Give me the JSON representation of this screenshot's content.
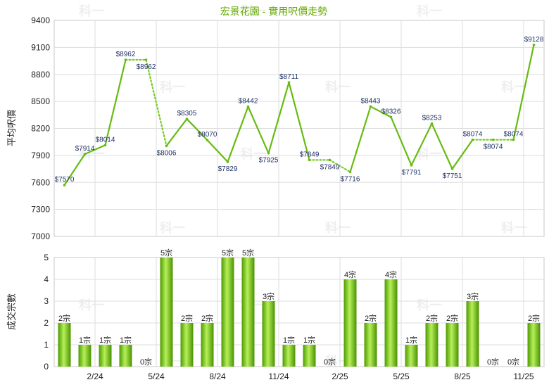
{
  "chart_data": [
    {
      "type": "line",
      "title": "宏景花園 - 實用呎價走勢",
      "ylabel": "平均呎價",
      "ylim": [
        7000,
        9400
      ],
      "yticks": [
        7000,
        7300,
        7600,
        7900,
        8200,
        8500,
        8800,
        9100,
        9400
      ],
      "grid": true,
      "color": "#66bb11",
      "gap_color": "#77cc22",
      "points": [
        {
          "label": "$7570",
          "value": 7570,
          "gap": false
        },
        {
          "label": "$7914",
          "value": 7914,
          "gap": false
        },
        {
          "label": "$8014",
          "value": 8014,
          "gap": false
        },
        {
          "label": "$8962",
          "value": 8962,
          "gap": false
        },
        {
          "label": "$8962",
          "value": 8962,
          "gap": true
        },
        {
          "label": "$8006",
          "value": 8006,
          "gap": false
        },
        {
          "label": "$8305",
          "value": 8305,
          "gap": false
        },
        {
          "label": "$8070",
          "value": 8070,
          "gap": false
        },
        {
          "label": "$7829",
          "value": 7829,
          "gap": false
        },
        {
          "label": "$8442",
          "value": 8442,
          "gap": false
        },
        {
          "label": "$7925",
          "value": 7925,
          "gap": false
        },
        {
          "label": "$8711",
          "value": 8711,
          "gap": false
        },
        {
          "label": "$7849",
          "value": 7849,
          "gap": false
        },
        {
          "label": "$7849",
          "value": 7849,
          "gap": true
        },
        {
          "label": "$7716",
          "value": 7716,
          "gap": false
        },
        {
          "label": "$8443",
          "value": 8443,
          "gap": false
        },
        {
          "label": "$8326",
          "value": 8326,
          "gap": false
        },
        {
          "label": "$7791",
          "value": 7791,
          "gap": false
        },
        {
          "label": "$8253",
          "value": 8253,
          "gap": false
        },
        {
          "label": "$7751",
          "value": 7751,
          "gap": false
        },
        {
          "label": "$8074",
          "value": 8074,
          "gap": false
        },
        {
          "label": "$8074",
          "value": 8074,
          "gap": true
        },
        {
          "label": "$8074",
          "value": 8074,
          "gap": false
        },
        {
          "label": "$9128",
          "value": 9128,
          "gap": false
        }
      ]
    },
    {
      "type": "bar",
      "ylabel": "成交宗數",
      "ylim": [
        0,
        5
      ],
      "yticks": [
        0,
        1,
        2,
        3,
        4,
        5
      ],
      "grid": true,
      "values": [
        2,
        1,
        1,
        1,
        0,
        5,
        2,
        2,
        5,
        5,
        3,
        1,
        1,
        0,
        4,
        2,
        4,
        1,
        2,
        2,
        3,
        0,
        0,
        2
      ],
      "value_labels": [
        "2宗",
        "1宗",
        "1宗",
        "1宗",
        "0宗",
        "5宗",
        "2宗",
        "2宗",
        "5宗",
        "5宗",
        "3宗",
        "1宗",
        "1宗",
        "0宗",
        "4宗",
        "2宗",
        "4宗",
        "1宗",
        "2宗",
        "2宗",
        "3宗",
        "0宗",
        "0宗",
        "2宗"
      ],
      "x_tick_labels": [
        {
          "index": 2,
          "label": "2/24"
        },
        {
          "index": 5,
          "label": "5/24"
        },
        {
          "index": 8,
          "label": "8/24"
        },
        {
          "index": 11,
          "label": "11/24"
        },
        {
          "index": 14,
          "label": "2/25"
        },
        {
          "index": 17,
          "label": "5/25"
        },
        {
          "index": 20,
          "label": "8/25"
        },
        {
          "index": 23,
          "label": "11/25"
        }
      ]
    }
  ],
  "watermark": "科一"
}
